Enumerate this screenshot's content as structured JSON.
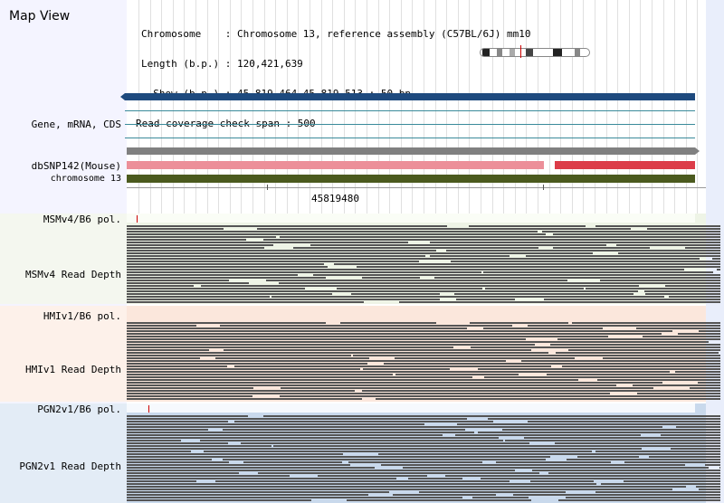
{
  "map": {
    "title": "Map View"
  },
  "info": {
    "line1": "Chromosome    : Chromosome 13, reference assembly (C57BL/6J) mm10",
    "line2": "Length (b.p.) : 120,421,639",
    "line3": "  Show (b.p.) : 45,819,464-45,819,513 : 50 bp",
    "line4": "Read coverage check span : 500"
  },
  "tracks": {
    "gene": "Gene, mRNA, CDS",
    "dbsnp": "dbSNP142(Mouse)",
    "chromosome": "chromosome 13",
    "msm_pol": "MSMv4/B6 pol.",
    "msm_depth": "MSMv4 Read Depth",
    "hmi_pol": "HMIv1/B6 pol.",
    "hmi_depth": "HMIv1 Read Depth",
    "pgn_pol": "PGN2v1/B6 pol.",
    "pgn_depth": "PGN2v1 Read Depth"
  },
  "ruler": {
    "position_label": "45819480"
  },
  "colors": {
    "gene_bar": "#1e4a7e",
    "transcript_line": "#3a8a9a",
    "dbsnp_gray": "#808080",
    "dbsnp_pink": "#ec8f99",
    "dbsnp_red": "#dc3c48",
    "chromosome_green": "#4b5a1e",
    "msm_bg": "#e6eedd",
    "hmi_bg": "#fbe6dc",
    "pgn_bg": "#c9d9ec",
    "read_gray": "#555555",
    "marker_red": "#cc0000"
  }
}
